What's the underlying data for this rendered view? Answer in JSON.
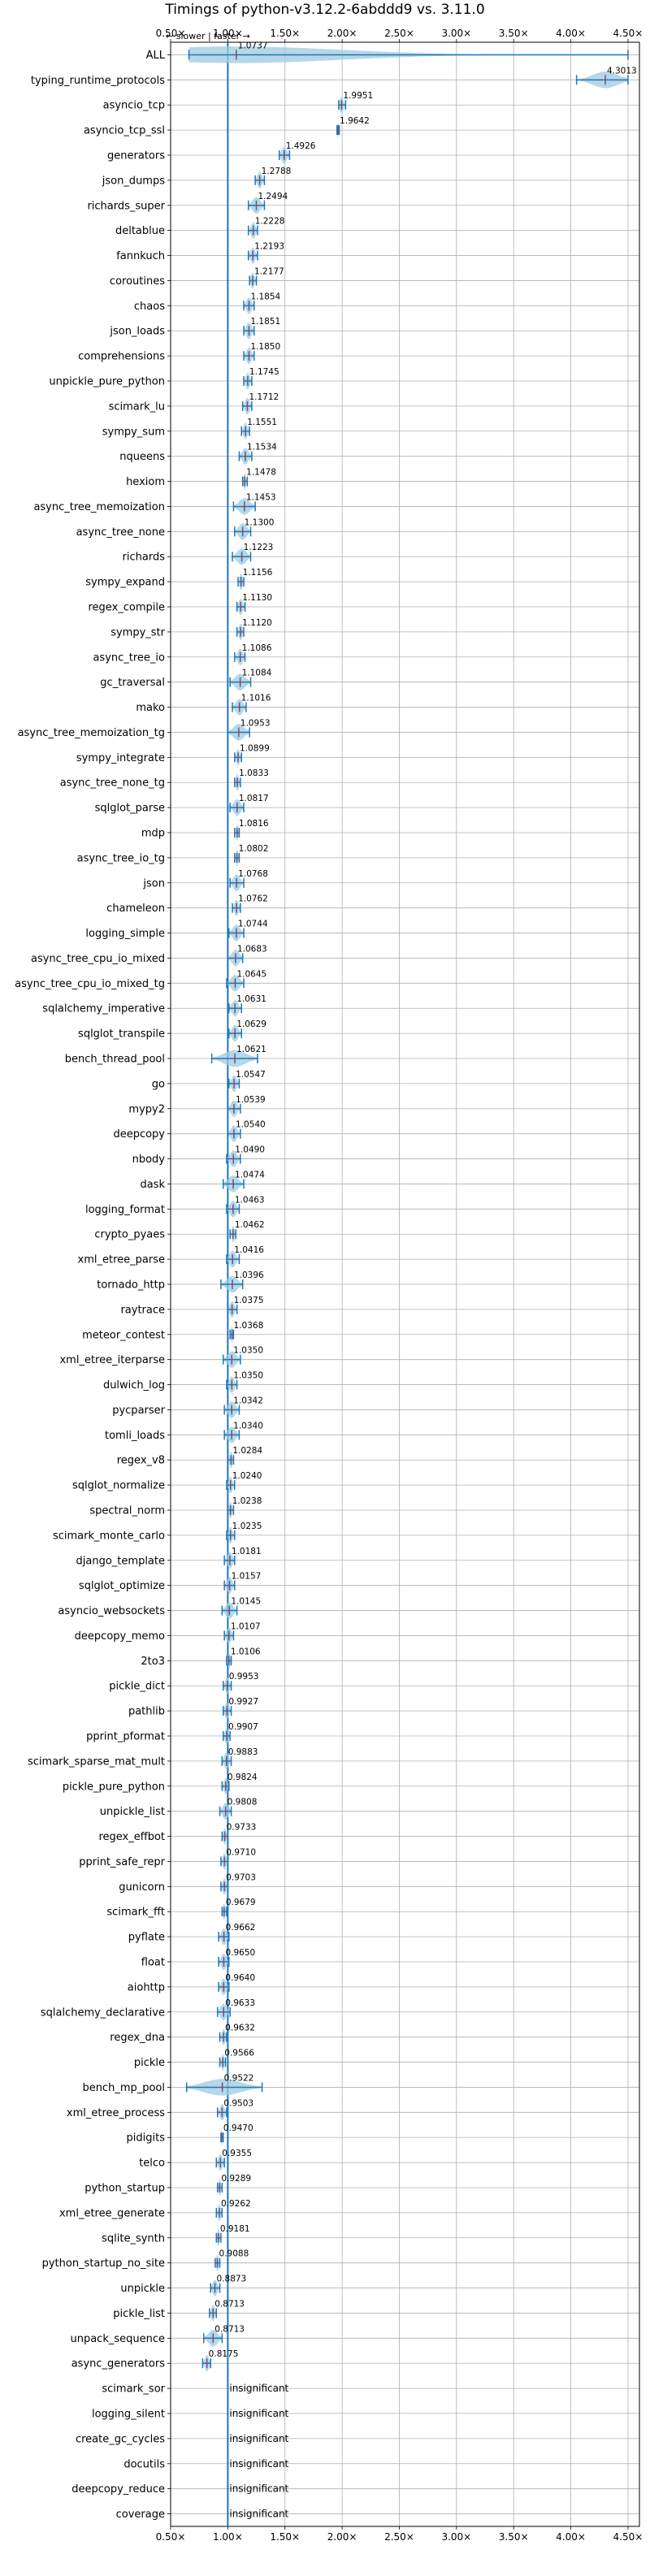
{
  "chart_data": {
    "type": "violin",
    "title": "Timings of python-v3.12.2-6abddd9 vs. 3.11.0",
    "direction_note": "← slower | faster →",
    "xlim": [
      0.5,
      4.6
    ],
    "xticks": [
      0.5,
      1.0,
      1.5,
      2.0,
      2.5,
      3.0,
      3.5,
      4.0,
      4.5
    ],
    "xtick_labels": [
      "0.50×",
      "1.00×",
      "1.50×",
      "2.00×",
      "2.50×",
      "3.00×",
      "3.50×",
      "4.00×",
      "4.50×"
    ],
    "reference_line": 1.0,
    "grid": true,
    "colors": {
      "violin": "#9ecae1",
      "line": "#1f77b4",
      "median": "#d62728",
      "grid": "#b0b0b0"
    },
    "insignificant_label": "insignificant",
    "benchmarks": [
      {
        "name": "ALL",
        "value": 1.0737,
        "label": "1.0737",
        "min": 0.66,
        "max": 4.5
      },
      {
        "name": "typing_runtime_protocols",
        "value": 4.3013,
        "label": "4.3013",
        "min": 4.05,
        "max": 4.5
      },
      {
        "name": "asyncio_tcp",
        "value": 1.9951,
        "label": "1.9951",
        "min": 1.97,
        "max": 2.03
      },
      {
        "name": "asyncio_tcp_ssl",
        "value": 1.9642,
        "label": "1.9642",
        "min": 1.955,
        "max": 1.975
      },
      {
        "name": "generators",
        "value": 1.4926,
        "label": "1.4926",
        "min": 1.45,
        "max": 1.54
      },
      {
        "name": "json_dumps",
        "value": 1.2788,
        "label": "1.2788",
        "min": 1.24,
        "max": 1.32
      },
      {
        "name": "richards_super",
        "value": 1.2494,
        "label": "1.2494",
        "min": 1.18,
        "max": 1.32
      },
      {
        "name": "deltablue",
        "value": 1.2228,
        "label": "1.2228",
        "min": 1.18,
        "max": 1.26
      },
      {
        "name": "fannkuch",
        "value": 1.2193,
        "label": "1.2193",
        "min": 1.18,
        "max": 1.26
      },
      {
        "name": "coroutines",
        "value": 1.2177,
        "label": "1.2177",
        "min": 1.19,
        "max": 1.25
      },
      {
        "name": "chaos",
        "value": 1.1854,
        "label": "1.1854",
        "min": 1.14,
        "max": 1.23
      },
      {
        "name": "json_loads",
        "value": 1.1851,
        "label": "1.1851",
        "min": 1.14,
        "max": 1.23
      },
      {
        "name": "comprehensions",
        "value": 1.185,
        "label": "1.1850",
        "min": 1.14,
        "max": 1.23
      },
      {
        "name": "unpickle_pure_python",
        "value": 1.1745,
        "label": "1.1745",
        "min": 1.14,
        "max": 1.21
      },
      {
        "name": "scimark_lu",
        "value": 1.1712,
        "label": "1.1712",
        "min": 1.13,
        "max": 1.21
      },
      {
        "name": "sympy_sum",
        "value": 1.1551,
        "label": "1.1551",
        "min": 1.12,
        "max": 1.19
      },
      {
        "name": "nqueens",
        "value": 1.1534,
        "label": "1.1534",
        "min": 1.1,
        "max": 1.21
      },
      {
        "name": "hexiom",
        "value": 1.1478,
        "label": "1.1478",
        "min": 1.13,
        "max": 1.17
      },
      {
        "name": "async_tree_memoization",
        "value": 1.1453,
        "label": "1.1453",
        "min": 1.05,
        "max": 1.24
      },
      {
        "name": "async_tree_none",
        "value": 1.13,
        "label": "1.1300",
        "min": 1.06,
        "max": 1.2
      },
      {
        "name": "richards",
        "value": 1.1223,
        "label": "1.1223",
        "min": 1.04,
        "max": 1.2
      },
      {
        "name": "sympy_expand",
        "value": 1.1156,
        "label": "1.1156",
        "min": 1.09,
        "max": 1.14
      },
      {
        "name": "regex_compile",
        "value": 1.113,
        "label": "1.1130",
        "min": 1.08,
        "max": 1.15
      },
      {
        "name": "sympy_str",
        "value": 1.112,
        "label": "1.1120",
        "min": 1.08,
        "max": 1.14
      },
      {
        "name": "async_tree_io",
        "value": 1.1086,
        "label": "1.1086",
        "min": 1.06,
        "max": 1.15
      },
      {
        "name": "gc_traversal",
        "value": 1.1084,
        "label": "1.1084",
        "min": 1.02,
        "max": 1.2
      },
      {
        "name": "mako",
        "value": 1.1016,
        "label": "1.1016",
        "min": 1.04,
        "max": 1.16
      },
      {
        "name": "async_tree_memoization_tg",
        "value": 1.0953,
        "label": "1.0953",
        "min": 1.0,
        "max": 1.19
      },
      {
        "name": "sympy_integrate",
        "value": 1.0899,
        "label": "1.0899",
        "min": 1.06,
        "max": 1.12
      },
      {
        "name": "async_tree_none_tg",
        "value": 1.0833,
        "label": "1.0833",
        "min": 1.06,
        "max": 1.11
      },
      {
        "name": "sqlglot_parse",
        "value": 1.0817,
        "label": "1.0817",
        "min": 1.02,
        "max": 1.14
      },
      {
        "name": "mdp",
        "value": 1.0816,
        "label": "1.0816",
        "min": 1.06,
        "max": 1.1
      },
      {
        "name": "async_tree_io_tg",
        "value": 1.0802,
        "label": "1.0802",
        "min": 1.06,
        "max": 1.1
      },
      {
        "name": "json",
        "value": 1.0768,
        "label": "1.0768",
        "min": 1.02,
        "max": 1.14
      },
      {
        "name": "chameleon",
        "value": 1.0762,
        "label": "1.0762",
        "min": 1.04,
        "max": 1.11
      },
      {
        "name": "logging_simple",
        "value": 1.0744,
        "label": "1.0744",
        "min": 1.01,
        "max": 1.14
      },
      {
        "name": "async_tree_cpu_io_mixed",
        "value": 1.0683,
        "label": "1.0683",
        "min": 1.0,
        "max": 1.13
      },
      {
        "name": "async_tree_cpu_io_mixed_tg",
        "value": 1.0645,
        "label": "1.0645",
        "min": 0.99,
        "max": 1.14
      },
      {
        "name": "sqlalchemy_imperative",
        "value": 1.0631,
        "label": "1.0631",
        "min": 1.01,
        "max": 1.12
      },
      {
        "name": "sqlglot_transpile",
        "value": 1.0629,
        "label": "1.0629",
        "min": 1.01,
        "max": 1.12
      },
      {
        "name": "bench_thread_pool",
        "value": 1.0621,
        "label": "1.0621",
        "min": 0.86,
        "max": 1.26
      },
      {
        "name": "go",
        "value": 1.0547,
        "label": "1.0547",
        "min": 1.01,
        "max": 1.1
      },
      {
        "name": "mypy2",
        "value": 1.0539,
        "label": "1.0539",
        "min": 1.0,
        "max": 1.11
      },
      {
        "name": "deepcopy",
        "value": 1.054,
        "label": "1.0540",
        "min": 1.0,
        "max": 1.11
      },
      {
        "name": "nbody",
        "value": 1.049,
        "label": "1.0490",
        "min": 0.99,
        "max": 1.11
      },
      {
        "name": "dask",
        "value": 1.0474,
        "label": "1.0474",
        "min": 0.96,
        "max": 1.14
      },
      {
        "name": "logging_format",
        "value": 1.0463,
        "label": "1.0463",
        "min": 0.99,
        "max": 1.1
      },
      {
        "name": "crypto_pyaes",
        "value": 1.0462,
        "label": "1.0462",
        "min": 1.02,
        "max": 1.07
      },
      {
        "name": "xml_etree_parse",
        "value": 1.0416,
        "label": "1.0416",
        "min": 0.99,
        "max": 1.1
      },
      {
        "name": "tornado_http",
        "value": 1.0396,
        "label": "1.0396",
        "min": 0.94,
        "max": 1.13
      },
      {
        "name": "raytrace",
        "value": 1.0375,
        "label": "1.0375",
        "min": 1.0,
        "max": 1.08
      },
      {
        "name": "meteor_contest",
        "value": 1.0368,
        "label": "1.0368",
        "min": 1.02,
        "max": 1.05
      },
      {
        "name": "xml_etree_iterparse",
        "value": 1.035,
        "label": "1.0350",
        "min": 0.96,
        "max": 1.11
      },
      {
        "name": "dulwich_log",
        "value": 1.035,
        "label": "1.0350",
        "min": 0.99,
        "max": 1.08
      },
      {
        "name": "pycparser",
        "value": 1.0342,
        "label": "1.0342",
        "min": 0.97,
        "max": 1.1
      },
      {
        "name": "tomli_loads",
        "value": 1.034,
        "label": "1.0340",
        "min": 0.97,
        "max": 1.1
      },
      {
        "name": "regex_v8",
        "value": 1.0284,
        "label": "1.0284",
        "min": 1.0,
        "max": 1.05
      },
      {
        "name": "sqlglot_normalize",
        "value": 1.024,
        "label": "1.0240",
        "min": 0.99,
        "max": 1.06
      },
      {
        "name": "spectral_norm",
        "value": 1.0238,
        "label": "1.0238",
        "min": 1.0,
        "max": 1.05
      },
      {
        "name": "scimark_monte_carlo",
        "value": 1.0235,
        "label": "1.0235",
        "min": 0.99,
        "max": 1.06
      },
      {
        "name": "django_template",
        "value": 1.0181,
        "label": "1.0181",
        "min": 0.97,
        "max": 1.06
      },
      {
        "name": "sqlglot_optimize",
        "value": 1.0157,
        "label": "1.0157",
        "min": 0.97,
        "max": 1.06
      },
      {
        "name": "asyncio_websockets",
        "value": 1.0145,
        "label": "1.0145",
        "min": 0.95,
        "max": 1.08
      },
      {
        "name": "deepcopy_memo",
        "value": 1.0107,
        "label": "1.0107",
        "min": 0.97,
        "max": 1.05
      },
      {
        "name": "2to3",
        "value": 1.0106,
        "label": "1.0106",
        "min": 0.99,
        "max": 1.03
      },
      {
        "name": "pickle_dict",
        "value": 0.9953,
        "label": "0.9953",
        "min": 0.96,
        "max": 1.03
      },
      {
        "name": "pathlib",
        "value": 0.9927,
        "label": "0.9927",
        "min": 0.96,
        "max": 1.03
      },
      {
        "name": "pprint_pformat",
        "value": 0.9907,
        "label": "0.9907",
        "min": 0.96,
        "max": 1.02
      },
      {
        "name": "scimark_sparse_mat_mult",
        "value": 0.9883,
        "label": "0.9883",
        "min": 0.95,
        "max": 1.03
      },
      {
        "name": "pickle_pure_python",
        "value": 0.9824,
        "label": "0.9824",
        "min": 0.95,
        "max": 1.01
      },
      {
        "name": "unpickle_list",
        "value": 0.9808,
        "label": "0.9808",
        "min": 0.93,
        "max": 1.03
      },
      {
        "name": "regex_effbot",
        "value": 0.9733,
        "label": "0.9733",
        "min": 0.95,
        "max": 1.0
      },
      {
        "name": "pprint_safe_repr",
        "value": 0.971,
        "label": "0.9710",
        "min": 0.94,
        "max": 1.0
      },
      {
        "name": "gunicorn",
        "value": 0.9703,
        "label": "0.9703",
        "min": 0.94,
        "max": 1.0
      },
      {
        "name": "scimark_fft",
        "value": 0.9679,
        "label": "0.9679",
        "min": 0.95,
        "max": 0.99
      },
      {
        "name": "pyflate",
        "value": 0.9662,
        "label": "0.9662",
        "min": 0.92,
        "max": 1.01
      },
      {
        "name": "float",
        "value": 0.965,
        "label": "0.9650",
        "min": 0.92,
        "max": 1.01
      },
      {
        "name": "aiohttp",
        "value": 0.964,
        "label": "0.9640",
        "min": 0.92,
        "max": 1.01
      },
      {
        "name": "sqlalchemy_declarative",
        "value": 0.9633,
        "label": "0.9633",
        "min": 0.91,
        "max": 1.02
      },
      {
        "name": "regex_dna",
        "value": 0.9632,
        "label": "0.9632",
        "min": 0.93,
        "max": 0.99
      },
      {
        "name": "pickle",
        "value": 0.9566,
        "label": "0.9566",
        "min": 0.93,
        "max": 0.98
      },
      {
        "name": "bench_mp_pool",
        "value": 0.9522,
        "label": "0.9522",
        "min": 0.64,
        "max": 1.3
      },
      {
        "name": "xml_etree_process",
        "value": 0.9503,
        "label": "0.9503",
        "min": 0.91,
        "max": 0.99
      },
      {
        "name": "pidigits",
        "value": 0.947,
        "label": "0.9470",
        "min": 0.94,
        "max": 0.96
      },
      {
        "name": "telco",
        "value": 0.9355,
        "label": "0.9355",
        "min": 0.9,
        "max": 0.97
      },
      {
        "name": "python_startup",
        "value": 0.9289,
        "label": "0.9289",
        "min": 0.91,
        "max": 0.95
      },
      {
        "name": "xml_etree_generate",
        "value": 0.9262,
        "label": "0.9262",
        "min": 0.9,
        "max": 0.95
      },
      {
        "name": "sqlite_synth",
        "value": 0.9181,
        "label": "0.9181",
        "min": 0.9,
        "max": 0.94
      },
      {
        "name": "python_startup_no_site",
        "value": 0.9088,
        "label": "0.9088",
        "min": 0.89,
        "max": 0.93
      },
      {
        "name": "unpickle",
        "value": 0.8873,
        "label": "0.8873",
        "min": 0.85,
        "max": 0.93
      },
      {
        "name": "pickle_list",
        "value": 0.8713,
        "label": "0.8713",
        "min": 0.84,
        "max": 0.9
      },
      {
        "name": "unpack_sequence",
        "value": 0.8713,
        "label": "0.8713",
        "min": 0.79,
        "max": 0.95
      },
      {
        "name": "async_generators",
        "value": 0.8175,
        "label": "0.8175",
        "min": 0.78,
        "max": 0.85
      },
      {
        "name": "scimark_sor",
        "insignificant": true
      },
      {
        "name": "logging_silent",
        "insignificant": true
      },
      {
        "name": "create_gc_cycles",
        "insignificant": true
      },
      {
        "name": "docutils",
        "insignificant": true
      },
      {
        "name": "deepcopy_reduce",
        "insignificant": true
      },
      {
        "name": "coverage",
        "insignificant": true
      }
    ]
  }
}
